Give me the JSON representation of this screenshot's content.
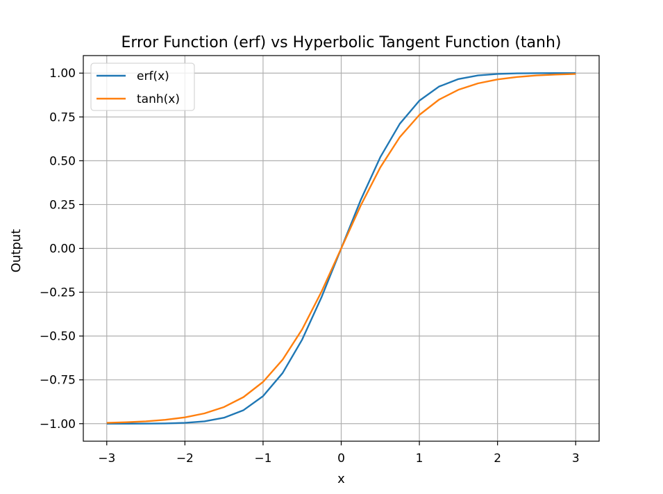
{
  "chart_data": {
    "type": "line",
    "title": "Error Function (erf) vs Hyperbolic Tangent Function (tanh)",
    "xlabel": "x",
    "ylabel": "Output",
    "xlim": [
      -3.3,
      3.3
    ],
    "ylim": [
      -1.1,
      1.1
    ],
    "xticks": [
      -3,
      -2,
      -1,
      0,
      1,
      2,
      3
    ],
    "xtick_labels": [
      "−3",
      "−2",
      "−1",
      "0",
      "1",
      "2",
      "3"
    ],
    "yticks": [
      -1.0,
      -0.75,
      -0.5,
      -0.25,
      0.0,
      0.25,
      0.5,
      0.75,
      1.0
    ],
    "ytick_labels": [
      "−1.00",
      "−0.75",
      "−0.50",
      "−0.25",
      "0.00",
      "0.25",
      "0.50",
      "0.75",
      "1.00"
    ],
    "grid": true,
    "legend_position": "top-left",
    "x": [
      -3,
      -2.75,
      -2.5,
      -2.25,
      -2,
      -1.75,
      -1.5,
      -1.25,
      -1,
      -0.75,
      -0.5,
      -0.25,
      0,
      0.25,
      0.5,
      0.75,
      1,
      1.25,
      1.5,
      1.75,
      2,
      2.25,
      2.5,
      2.75,
      3
    ],
    "series": [
      {
        "name": "erf(x)",
        "color": "#1f77b4",
        "values": [
          -1.0,
          -0.9999,
          -0.9996,
          -0.9985,
          -0.9953,
          -0.9867,
          -0.9661,
          -0.9229,
          -0.8427,
          -0.7112,
          -0.5205,
          -0.2763,
          0.0,
          0.2763,
          0.5205,
          0.7112,
          0.8427,
          0.9229,
          0.9661,
          0.9867,
          0.9953,
          0.9985,
          0.9996,
          0.9999,
          1.0
        ]
      },
      {
        "name": "tanh(x)",
        "color": "#ff7f0e",
        "values": [
          -0.9951,
          -0.9919,
          -0.9866,
          -0.978,
          -0.964,
          -0.9414,
          -0.9051,
          -0.8483,
          -0.7616,
          -0.6351,
          -0.4621,
          -0.2449,
          0.0,
          0.2449,
          0.4621,
          0.6351,
          0.7616,
          0.8483,
          0.9051,
          0.9414,
          0.964,
          0.978,
          0.9866,
          0.9919,
          0.9951
        ]
      }
    ]
  }
}
